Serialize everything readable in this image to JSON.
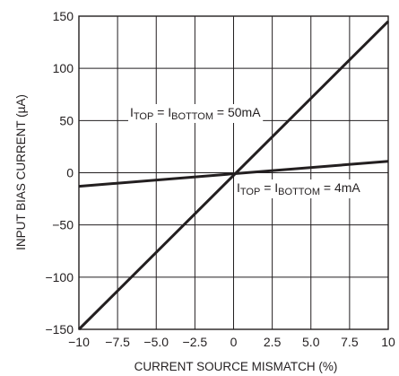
{
  "chart_data": {
    "type": "line",
    "title": "",
    "xlabel": "CURRENT SOURCE MISMATCH (%)",
    "ylabel": "INPUT BIAS CURRENT (µA)",
    "xlim": [
      -10,
      10
    ],
    "ylim": [
      -150,
      150
    ],
    "x_ticks": [
      -10,
      -7.5,
      -5,
      -2.5,
      0,
      2.5,
      5,
      7.5,
      10
    ],
    "x_tick_labels": [
      "−10",
      "−7.5",
      "−5.0",
      "−2.5",
      "0",
      "2.5",
      "5.0",
      "7.5",
      "10"
    ],
    "y_ticks": [
      -150,
      -100,
      -50,
      0,
      50,
      100,
      150
    ],
    "y_tick_labels": [
      "−150",
      "−100",
      "−50",
      "0",
      "50",
      "100",
      "150"
    ],
    "grid": true,
    "series": [
      {
        "x": [
          -10,
          10
        ],
        "y": [
          -150,
          145
        ],
        "label": {
          "base": "I",
          "sub1": "TOP",
          "mid": " = I",
          "sub2": "BOTTOM",
          "tail": " = 50mA"
        }
      },
      {
        "x": [
          -10,
          10
        ],
        "y": [
          -13,
          11
        ],
        "label": {
          "base": "I",
          "sub1": "TOP",
          "mid": " = I",
          "sub2": "BOTTOM",
          "tail": " = 4mA"
        }
      }
    ]
  }
}
